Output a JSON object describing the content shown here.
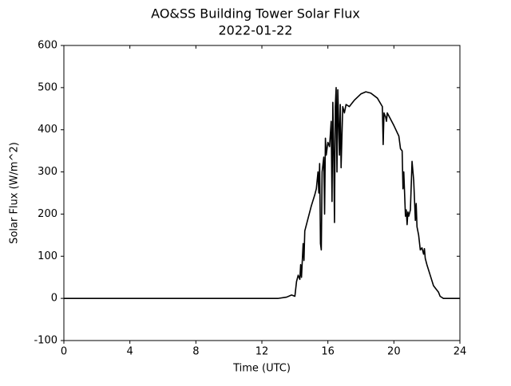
{
  "chart_data": {
    "type": "line",
    "title": "AO&SS Building Tower Solar Flux",
    "subtitle": "2022-01-22",
    "x_label": "Time (UTC)",
    "y_label": "Solar Flux (W/m^2)",
    "xlim": [
      0,
      24
    ],
    "xticks": [
      0,
      4,
      8,
      12,
      16,
      20,
      24
    ],
    "ylim": [
      -100,
      600
    ],
    "yticks": [
      -100,
      0,
      100,
      200,
      300,
      400,
      500,
      600
    ],
    "grid": false,
    "series": [
      {
        "color": "#000000",
        "x": [
          0,
          13,
          13.5,
          13.8,
          14.0,
          14.1,
          14.2,
          14.3,
          14.35,
          14.4,
          14.5,
          14.55,
          14.6,
          14.8,
          15.0,
          15.2,
          15.3,
          15.4,
          15.45,
          15.5,
          15.55,
          15.6,
          15.65,
          15.75,
          15.8,
          15.85,
          15.9,
          16.0,
          16.1,
          16.2,
          16.25,
          16.3,
          16.35,
          16.4,
          16.45,
          16.5,
          16.55,
          16.6,
          16.7,
          16.75,
          16.8,
          16.9,
          17.0,
          17.1,
          17.3,
          17.6,
          18.0,
          18.3,
          18.6,
          19.0,
          19.3,
          19.35,
          19.4,
          19.5,
          19.55,
          19.6,
          20.0,
          20.3,
          20.4,
          20.5,
          20.55,
          20.6,
          20.7,
          20.75,
          20.8,
          20.85,
          20.9,
          21.0,
          21.1,
          21.2,
          21.3,
          21.35,
          21.4,
          21.5,
          21.6,
          21.7,
          21.8,
          21.85,
          21.9,
          22.0,
          22.2,
          22.4,
          22.6,
          22.7,
          22.8,
          23.0,
          24
        ],
        "values": [
          0,
          0,
          3,
          8,
          5,
          40,
          55,
          45,
          80,
          50,
          130,
          90,
          160,
          190,
          220,
          245,
          260,
          300,
          250,
          320,
          130,
          115,
          300,
          335,
          200,
          380,
          340,
          370,
          360,
          420,
          230,
          465,
          350,
          180,
          455,
          500,
          300,
          495,
          340,
          460,
          310,
          455,
          440,
          460,
          455,
          470,
          485,
          490,
          487,
          475,
          455,
          365,
          440,
          430,
          420,
          440,
          410,
          385,
          355,
          350,
          260,
          300,
          195,
          210,
          175,
          205,
          195,
          210,
          325,
          280,
          185,
          225,
          170,
          150,
          115,
          120,
          105,
          118,
          95,
          80,
          55,
          30,
          20,
          15,
          5,
          0,
          0
        ]
      }
    ]
  }
}
